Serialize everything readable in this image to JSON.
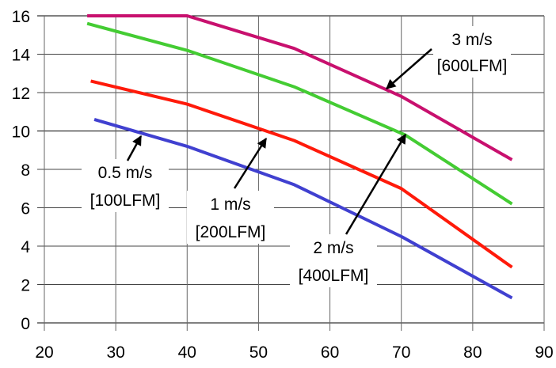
{
  "chart_data": {
    "type": "line",
    "title": "",
    "xlabel": "",
    "ylabel": "",
    "xlim": [
      20,
      90
    ],
    "ylim": [
      0,
      16
    ],
    "xticks": [
      "20",
      "30",
      "40",
      "50",
      "60",
      "70",
      "80",
      "90"
    ],
    "yticks": [
      "0",
      "2",
      "4",
      "6",
      "8",
      "10",
      "12",
      "14",
      "16"
    ],
    "grid": true,
    "series": [
      {
        "name": "3 m/s [600LFM]",
        "label1": "3 m/s",
        "label2": "[600LFM]",
        "color": "#c8106e",
        "x": [
          26,
          40,
          55,
          70,
          85.5
        ],
        "y": [
          16,
          16,
          14.3,
          11.8,
          8.5
        ]
      },
      {
        "name": "2 m/s [400LFM]",
        "label1": "2 m/s",
        "label2": "[400LFM]",
        "color": "#44cc33",
        "x": [
          26,
          40,
          55,
          70.5,
          85.5
        ],
        "y": [
          15.6,
          14.2,
          12.3,
          9.8,
          6.2
        ]
      },
      {
        "name": "1 m/s [200LFM]",
        "label1": "1 m/s",
        "label2": "[200LFM]",
        "color": "#ff1a0a",
        "x": [
          26.5,
          40,
          55,
          70,
          85.5
        ],
        "y": [
          12.6,
          11.4,
          9.5,
          7.0,
          2.9
        ]
      },
      {
        "name": "0.5 m/s [100LFM]",
        "label1": "0.5 m/s",
        "label2": "[100LFM]",
        "color": "#4040d0",
        "x": [
          27,
          40,
          55,
          70,
          85.5
        ],
        "y": [
          10.6,
          9.2,
          7.2,
          4.5,
          1.3
        ]
      }
    ]
  }
}
